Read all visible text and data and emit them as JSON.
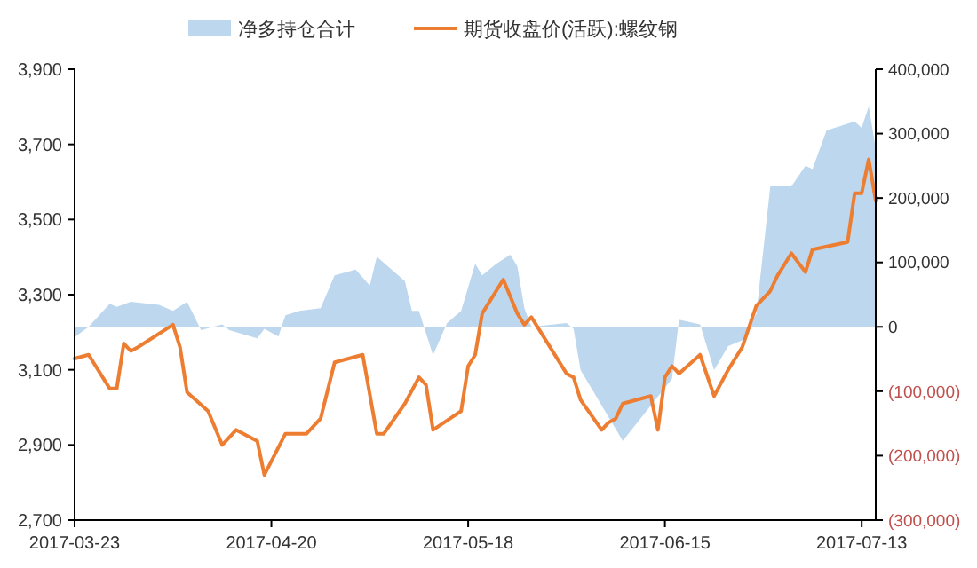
{
  "chart_data": {
    "type": "line",
    "legend": "top",
    "xlim": [
      "2017-03-23",
      "2017-07-15"
    ],
    "xticks": [
      "2017-03-23",
      "2017-04-20",
      "2017-05-18",
      "2017-06-15",
      "2017-07-13"
    ],
    "ylim": [
      2700,
      3900
    ],
    "yticks": [
      {
        "value": 2700,
        "label": "2,700"
      },
      {
        "value": 2900,
        "label": "2,900"
      },
      {
        "value": 3100,
        "label": "3,100"
      },
      {
        "value": 3300,
        "label": "3,300"
      },
      {
        "value": 3500,
        "label": "3,500"
      },
      {
        "value": 3700,
        "label": "3,700"
      },
      {
        "value": 3900,
        "label": "3,900"
      }
    ],
    "y2lim": [
      -300000,
      400000
    ],
    "y2ticks": [
      {
        "value": -300000,
        "label": "(300,000)"
      },
      {
        "value": -200000,
        "label": "(200,000)"
      },
      {
        "value": -100000,
        "label": "(100,000)"
      },
      0,
      {
        "value": 100000,
        "label": "100,000"
      },
      {
        "value": 200000,
        "label": "200,000"
      },
      {
        "value": 300000,
        "label": "300,000"
      },
      {
        "value": 400000,
        "label": "400,000"
      }
    ],
    "series": [
      {
        "name": "净多持仓合计",
        "type": "area",
        "axis": "y2",
        "color": "#bdd7ee",
        "x": [
          "2017-03-23",
          "2017-03-25",
          "2017-03-28",
          "2017-03-29",
          "2017-03-31",
          "2017-04-04",
          "2017-04-06",
          "2017-04-08",
          "2017-04-10",
          "2017-04-13",
          "2017-04-14",
          "2017-04-18",
          "2017-04-19",
          "2017-04-21",
          "2017-04-22",
          "2017-04-24",
          "2017-04-27",
          "2017-04-29",
          "2017-05-02",
          "2017-05-04",
          "2017-05-05",
          "2017-05-09",
          "2017-05-10",
          "2017-05-11",
          "2017-05-13",
          "2017-05-15",
          "2017-05-17",
          "2017-05-19",
          "2017-05-20",
          "2017-05-22",
          "2017-05-24",
          "2017-05-25",
          "2017-05-26",
          "2017-05-27",
          "2017-06-01",
          "2017-06-02",
          "2017-06-03",
          "2017-06-09",
          "2017-06-16",
          "2017-06-17",
          "2017-06-20",
          "2017-06-22",
          "2017-06-24",
          "2017-06-26",
          "2017-06-28",
          "2017-06-30",
          "2017-07-03",
          "2017-07-05",
          "2017-07-06",
          "2017-07-08",
          "2017-07-12",
          "2017-07-13",
          "2017-07-14",
          "2017-07-15"
        ],
        "values": [
          -16000,
          0,
          36000,
          31000,
          39000,
          34000,
          25000,
          39000,
          -5000,
          4000,
          -5000,
          -18000,
          -3000,
          -15000,
          18000,
          25000,
          29000,
          80000,
          89000,
          64000,
          109000,
          71000,
          25000,
          25000,
          -44000,
          6000,
          25000,
          98000,
          80000,
          98000,
          112000,
          94000,
          29000,
          0,
          6000,
          -3000,
          -67000,
          -177000,
          -81000,
          11000,
          4000,
          -67000,
          -30000,
          -21000,
          20000,
          218000,
          218000,
          250000,
          245000,
          305000,
          319000,
          309000,
          342000,
          277000
        ]
      },
      {
        "name": "期货收盘价(活跃):螺纹钢",
        "color": "#ed7d31",
        "x": [
          "2017-03-23",
          "2017-03-25",
          "2017-03-28",
          "2017-03-29",
          "2017-03-30",
          "2017-03-31",
          "2017-04-01",
          "2017-04-06",
          "2017-04-07",
          "2017-04-08",
          "2017-04-11",
          "2017-04-13",
          "2017-04-15",
          "2017-04-18",
          "2017-04-19",
          "2017-04-22",
          "2017-04-25",
          "2017-04-27",
          "2017-04-29",
          "2017-05-03",
          "2017-05-05",
          "2017-05-06",
          "2017-05-09",
          "2017-05-11",
          "2017-05-12",
          "2017-05-13",
          "2017-05-17",
          "2017-05-18",
          "2017-05-19",
          "2017-05-20",
          "2017-05-23",
          "2017-05-25",
          "2017-05-26",
          "2017-05-27",
          "2017-06-01",
          "2017-06-02",
          "2017-06-03",
          "2017-06-06",
          "2017-06-07",
          "2017-06-08",
          "2017-06-09",
          "2017-06-13",
          "2017-06-14",
          "2017-06-15",
          "2017-06-16",
          "2017-06-17",
          "2017-06-20",
          "2017-06-22",
          "2017-06-24",
          "2017-06-26",
          "2017-06-28",
          "2017-06-30",
          "2017-07-01",
          "2017-07-03",
          "2017-07-05",
          "2017-07-06",
          "2017-07-11",
          "2017-07-12",
          "2017-07-13",
          "2017-07-14",
          "2017-07-15"
        ],
        "values": [
          3130,
          3140,
          3050,
          3050,
          3170,
          3150,
          3160,
          3220,
          3160,
          3040,
          2990,
          2900,
          2940,
          2910,
          2820,
          2930,
          2930,
          2970,
          3120,
          3140,
          2930,
          2930,
          3010,
          3080,
          3060,
          2940,
          2990,
          3110,
          3140,
          3250,
          3340,
          3250,
          3220,
          3240,
          3090,
          3080,
          3020,
          2940,
          2960,
          2970,
          3010,
          3030,
          2940,
          3080,
          3110,
          3090,
          3140,
          3030,
          3100,
          3160,
          3270,
          3310,
          3350,
          3410,
          3360,
          3420,
          3440,
          3570,
          3570,
          3660,
          3550
        ]
      }
    ]
  }
}
